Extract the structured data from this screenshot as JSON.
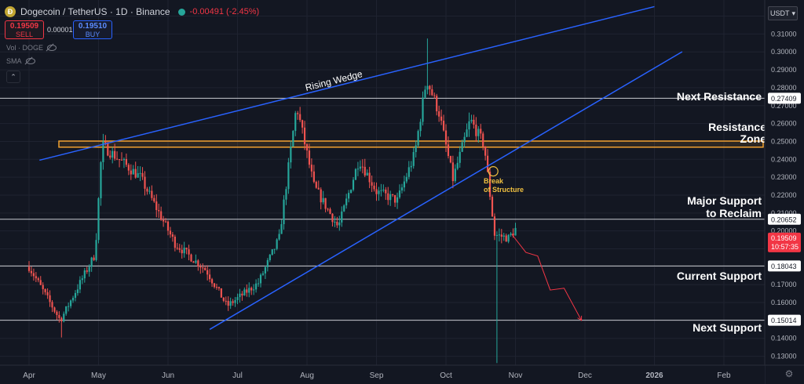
{
  "header": {
    "title": "Dogecoin / TetherUS · 1D · Binance",
    "change": "-0.00491 (-2.45%)"
  },
  "trade": {
    "sell_price": "0.19509",
    "sell_label": "SELL",
    "spread": "0.00001",
    "buy_price": "0.19510",
    "buy_label": "BUY"
  },
  "indicators": {
    "vol": "Vol · DOGE",
    "sma": "SMA"
  },
  "currency": "USDT",
  "icons": [
    "coin-icon",
    "live-dot-icon",
    "eye-icon",
    "chevron-up-icon",
    "chevron-down-icon",
    "settings-icon"
  ],
  "colors": {
    "up": "#26a69a",
    "down": "#ef5350",
    "trendline": "#2962ff",
    "zone": "#f0a030",
    "path": "#f23645"
  },
  "chart_data": {
    "type": "candlestick",
    "x_ticks": [
      "Apr",
      "May",
      "Jun",
      "Jul",
      "Aug",
      "Sep",
      "Oct",
      "Nov",
      "Dec",
      "2026",
      "Feb"
    ],
    "y_ticks": [
      "0.32000",
      "0.31000",
      "0.30000",
      "0.29000",
      "0.28000",
      "0.27000",
      "0.26000",
      "0.25000",
      "0.24000",
      "0.23000",
      "0.22000",
      "0.21000",
      "0.20000",
      "0.19000",
      "0.18000",
      "0.17000",
      "0.16000",
      "0.15000",
      "0.14000",
      "0.13000"
    ],
    "ylim": [
      0.125,
      0.329
    ],
    "price_labels": [
      {
        "name": "Next Resistance",
        "value": 0.27409,
        "text": "0.27409"
      },
      {
        "name": "Major Support",
        "value": 0.20652,
        "text": "0.20652"
      },
      {
        "name": "Current Support",
        "value": 0.18043,
        "text": "0.18043"
      },
      {
        "name": "Next Support",
        "value": 0.15014,
        "text": "0.15014"
      }
    ],
    "last_price": {
      "value": 0.19509,
      "text": "0.19509",
      "countdown": "10:57:35"
    },
    "resistance_zone": [
      0.2468,
      0.2502
    ],
    "annotations": {
      "rising_wedge": "Rising Wedge",
      "next_resistance": "Next Resistance",
      "resistance_zone": [
        "Resistance",
        "Zone"
      ],
      "break_of_structure": [
        "Break",
        "of Structure"
      ],
      "major_support": [
        "Major Support",
        "to Reclaim"
      ],
      "current_support": "Current Support",
      "next_support": "Next Support"
    },
    "anchors": [
      {
        "month": 0,
        "price": 0.18
      },
      {
        "month": 0.45,
        "price": 0.15
      },
      {
        "month": 0.95,
        "price": 0.187
      },
      {
        "month": 1.05,
        "price": 0.248
      },
      {
        "month": 1.6,
        "price": 0.23
      },
      {
        "month": 2.1,
        "price": 0.193
      },
      {
        "month": 2.55,
        "price": 0.178
      },
      {
        "month": 2.85,
        "price": 0.158
      },
      {
        "month": 3.3,
        "price": 0.171
      },
      {
        "month": 3.6,
        "price": 0.196
      },
      {
        "month": 3.85,
        "price": 0.27
      },
      {
        "month": 4.1,
        "price": 0.225
      },
      {
        "month": 4.45,
        "price": 0.202
      },
      {
        "month": 4.75,
        "price": 0.24
      },
      {
        "month": 5.0,
        "price": 0.222
      },
      {
        "month": 5.3,
        "price": 0.217
      },
      {
        "month": 5.55,
        "price": 0.243
      },
      {
        "month": 5.72,
        "price": 0.285
      },
      {
        "month": 5.9,
        "price": 0.266
      },
      {
        "month": 6.1,
        "price": 0.229
      },
      {
        "month": 6.35,
        "price": 0.262
      },
      {
        "month": 6.55,
        "price": 0.248
      },
      {
        "month": 6.7,
        "price": 0.198
      },
      {
        "month": 6.9,
        "price": 0.196
      },
      {
        "month": 7.0,
        "price": 0.201
      }
    ],
    "projection": [
      {
        "month": 6.95,
        "price": 0.198
      },
      {
        "month": 7.15,
        "price": 0.188
      },
      {
        "month": 7.32,
        "price": 0.186
      },
      {
        "month": 7.5,
        "price": 0.167
      },
      {
        "month": 7.7,
        "price": 0.168
      },
      {
        "month": 7.95,
        "price": 0.15
      }
    ],
    "trendlines": [
      {
        "name": "wedge-upper",
        "from": {
          "month": 0.15,
          "price": 0.2395
        },
        "to": {
          "month": 9.0,
          "price": 0.3253
        }
      },
      {
        "name": "wedge-lower",
        "from": {
          "month": 2.6,
          "price": 0.145
        },
        "to": {
          "month": 9.4,
          "price": 0.3001
        }
      }
    ],
    "break_point": {
      "month": 6.68,
      "price": 0.2333
    }
  }
}
